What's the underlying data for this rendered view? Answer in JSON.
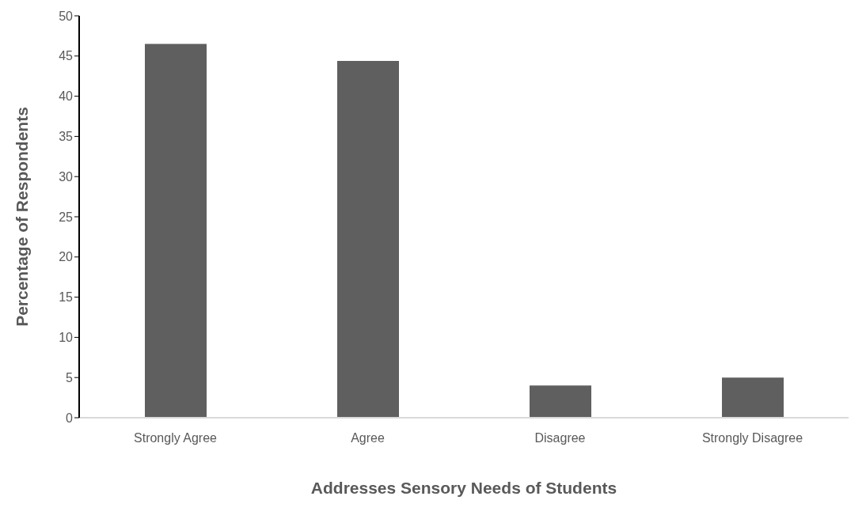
{
  "chart_data": {
    "type": "bar",
    "xlabel": "Addresses Sensory Needs of Students",
    "ylabel": "Percentage of Respondents",
    "categories": [
      "Strongly Agree",
      "Agree",
      "Disagree",
      "Strongly Disagree"
    ],
    "values": [
      46.5,
      44.4,
      4,
      5
    ],
    "color": "#5f5f5f",
    "ylim": [
      0,
      50
    ],
    "yticks": [
      0,
      5,
      10,
      15,
      20,
      25,
      30,
      35,
      40,
      45,
      50
    ],
    "grid": false,
    "legend": false
  }
}
